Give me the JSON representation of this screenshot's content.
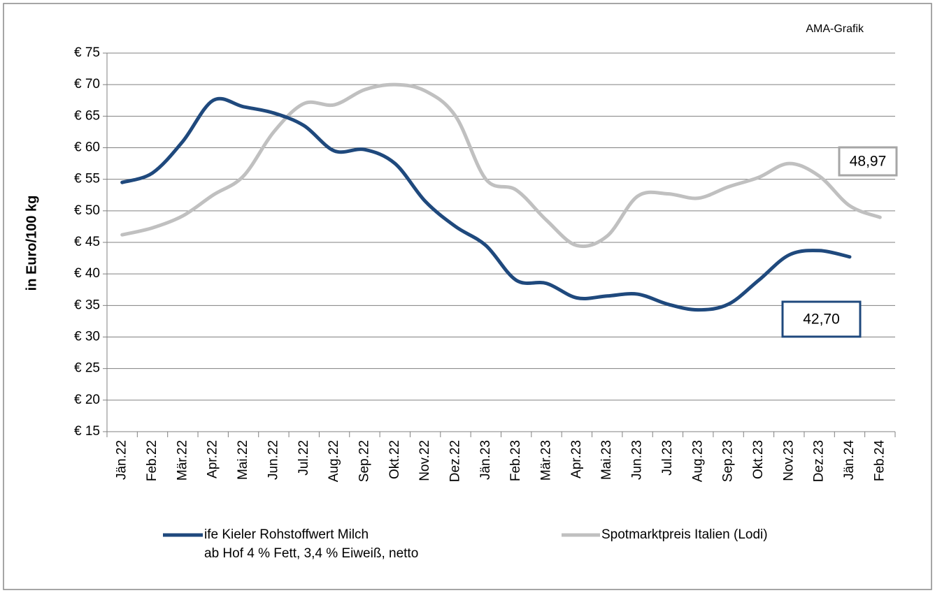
{
  "chart_data": {
    "type": "line",
    "y_label": "in Euro/100 kg",
    "source": "AMA-Grafik",
    "categories": [
      "Jän.22",
      "Feb.22",
      "Mär.22",
      "Apr.22",
      "Mai.22",
      "Jun.22",
      "Jul.22",
      "Aug.22",
      "Sep.22",
      "Okt.22",
      "Nov.22",
      "Dez.22",
      "Jän.23",
      "Feb.23",
      "Mär.23",
      "Apr.23",
      "Mai.23",
      "Jun.23",
      "Jul.23",
      "Aug.23",
      "Sep.23",
      "Okt.23",
      "Nov.23",
      "Dez.23",
      "Jän.24",
      "Feb.24"
    ],
    "series": [
      {
        "name": "ife Kieler Rohstoffwert Milch\nab Hof 4 % Fett, 3,4 % Eiweiß, netto",
        "color": "#1f497d",
        "values": [
          54.5,
          56,
          61,
          67.5,
          66.5,
          65.5,
          63.5,
          59.5,
          59.7,
          57.5,
          51.5,
          47.5,
          44.5,
          39,
          38.5,
          36.2,
          36.5,
          36.8,
          35.2,
          34.3,
          35.2,
          39,
          43,
          43.7,
          42.7,
          null
        ]
      },
      {
        "name": "Spotmarktpreis Italien (Lodi)",
        "color": "#c0c0c0",
        "values": [
          46.2,
          47.3,
          49.2,
          52.5,
          55.5,
          62.5,
          67,
          66.8,
          69.2,
          70,
          69,
          65,
          55,
          53.3,
          48.5,
          44.5,
          46,
          52.3,
          52.7,
          52,
          53.8,
          55.3,
          57.5,
          55.5,
          50.8,
          48.97
        ]
      }
    ],
    "annotations": [
      {
        "text": "48,97",
        "series": 1,
        "color": "#a6a6a6"
      },
      {
        "text": "42,70",
        "series": 0,
        "color": "#1f497d"
      }
    ],
    "ylim": [
      15,
      75
    ],
    "yticks": [
      {
        "value": 15,
        "label": "€ 15"
      },
      {
        "value": 20,
        "label": "€ 20"
      },
      {
        "value": 25,
        "label": "€ 25"
      },
      {
        "value": 30,
        "label": "€ 30"
      },
      {
        "value": 35,
        "label": "€ 35"
      },
      {
        "value": 40,
        "label": "€ 40"
      },
      {
        "value": 45,
        "label": "€ 45"
      },
      {
        "value": 50,
        "label": "€ 50"
      },
      {
        "value": 55,
        "label": "€ 55"
      },
      {
        "value": 60,
        "label": "€ 60"
      },
      {
        "value": 65,
        "label": "€ 65"
      },
      {
        "value": 70,
        "label": "€ 70"
      },
      {
        "value": 75,
        "label": "€ 75"
      }
    ],
    "grid": true,
    "legend": "bottom"
  }
}
